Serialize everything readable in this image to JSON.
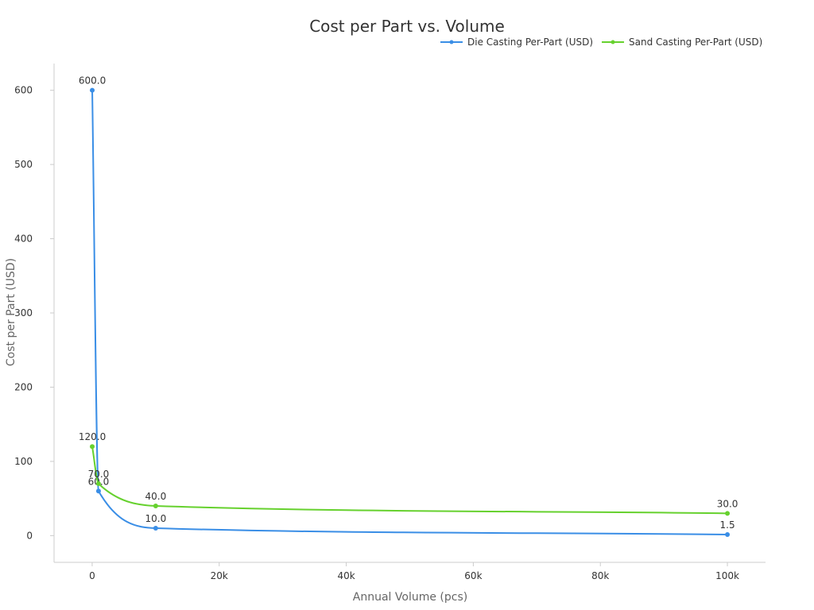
{
  "chart_data": {
    "type": "line",
    "title": "Cost per Part vs. Volume",
    "xlabel": "Annual Volume (pcs)",
    "ylabel": "Cost per Part (USD)",
    "xlim": [
      -6000,
      106000
    ],
    "ylim": [
      -36,
      636
    ],
    "x_ticks": [
      0,
      20000,
      40000,
      60000,
      80000,
      100000
    ],
    "x_tick_labels": [
      "0",
      "20k",
      "40k",
      "60k",
      "80k",
      "100k"
    ],
    "y_ticks": [
      0,
      100,
      200,
      300,
      400,
      500,
      600
    ],
    "y_tick_labels": [
      "0",
      "100",
      "200",
      "300",
      "400",
      "500",
      "600"
    ],
    "grid": false,
    "legend_position": "top-right",
    "series": [
      {
        "name": "Die Casting Per-Part (USD)",
        "color": "#3a8ee6",
        "points": [
          {
            "x": 10,
            "y": 600.0,
            "label": "600.0"
          },
          {
            "x": 1000,
            "y": 60.0,
            "label": "60.0"
          },
          {
            "x": 10000,
            "y": 10.0,
            "label": "10.0"
          },
          {
            "x": 100000,
            "y": 1.5,
            "label": "1.5"
          }
        ]
      },
      {
        "name": "Sand Casting Per-Part (USD)",
        "color": "#66d12e",
        "points": [
          {
            "x": 10,
            "y": 120.0,
            "label": "120.0"
          },
          {
            "x": 1000,
            "y": 70.0,
            "label": "70.0"
          },
          {
            "x": 10000,
            "y": 40.0,
            "label": "40.0"
          },
          {
            "x": 100000,
            "y": 30.0,
            "label": "30.0"
          }
        ]
      }
    ]
  }
}
